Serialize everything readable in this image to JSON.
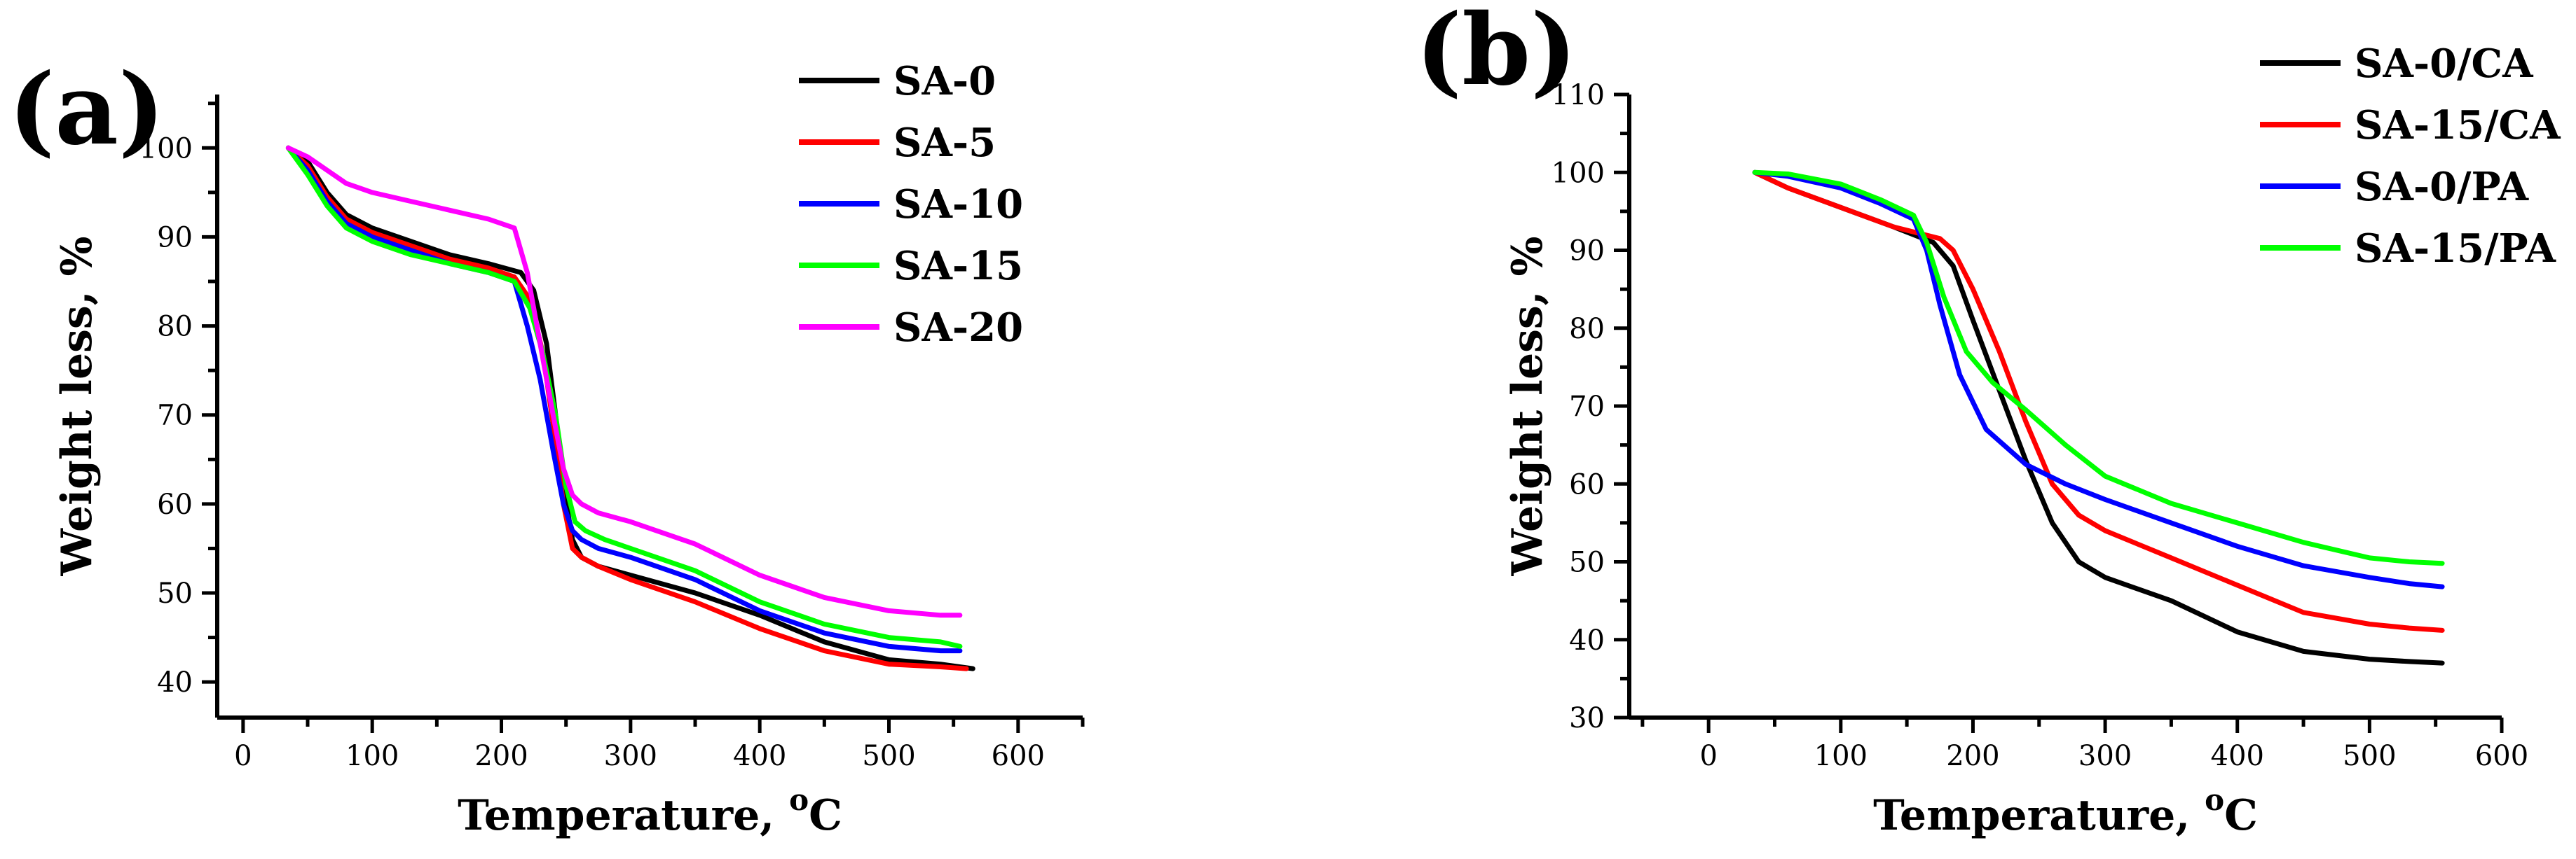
{
  "chart_data": [
    {
      "type": "line",
      "panel_label": "(a)",
      "xlabel": "Temperature, ",
      "xlabel_sup": "o",
      "xlabel_unit": "C",
      "ylabel": "Weight less, %",
      "xlim": [
        -20,
        650
      ],
      "ylim": [
        36,
        106
      ],
      "xticks": [
        0,
        100,
        200,
        300,
        400,
        500,
        600
      ],
      "yticks": [
        40,
        50,
        60,
        70,
        80,
        90,
        100
      ],
      "legend_position": "top-right",
      "series": [
        {
          "name": "SA-0",
          "color": "#000000",
          "x": [
            35,
            50,
            65,
            80,
            100,
            130,
            160,
            190,
            215,
            225,
            235,
            242,
            248,
            255,
            262,
            275,
            300,
            350,
            400,
            450,
            500,
            540,
            565
          ],
          "y": [
            100,
            98.5,
            95,
            92.5,
            91,
            89.5,
            88,
            87,
            86,
            84,
            78,
            70,
            62,
            56,
            54,
            53,
            52,
            50,
            47.5,
            44.5,
            42.5,
            42,
            41.5
          ]
        },
        {
          "name": "SA-5",
          "color": "#ff0000",
          "x": [
            35,
            50,
            65,
            80,
            100,
            130,
            160,
            190,
            210,
            222,
            232,
            240,
            248,
            255,
            262,
            275,
            300,
            350,
            400,
            450,
            500,
            540,
            560
          ],
          "y": [
            100,
            98,
            94.5,
            92,
            90.5,
            89,
            87.5,
            86.5,
            85.5,
            83,
            77,
            69,
            60,
            55,
            54,
            53,
            51.5,
            49,
            46,
            43.5,
            42,
            41.7,
            41.5
          ]
        },
        {
          "name": "SA-10",
          "color": "#0000ff",
          "x": [
            35,
            50,
            65,
            80,
            100,
            130,
            160,
            190,
            210,
            220,
            230,
            240,
            248,
            255,
            262,
            275,
            300,
            350,
            400,
            450,
            500,
            540,
            555
          ],
          "y": [
            100,
            97.5,
            94,
            91.5,
            90,
            88.5,
            87,
            86,
            85,
            80,
            74,
            66,
            60,
            57,
            56,
            55,
            54,
            51.5,
            48,
            45.5,
            44,
            43.5,
            43.5
          ]
        },
        {
          "name": "SA-15",
          "color": "#00ff00",
          "x": [
            35,
            50,
            65,
            80,
            100,
            130,
            160,
            190,
            210,
            222,
            232,
            242,
            250,
            257,
            265,
            280,
            300,
            350,
            400,
            450,
            500,
            540,
            555
          ],
          "y": [
            100,
            97,
            93.5,
            91,
            89.5,
            88,
            87,
            86,
            85,
            82,
            77,
            70,
            62,
            58,
            57,
            56,
            55,
            52.5,
            49,
            46.5,
            45,
            44.5,
            44
          ]
        },
        {
          "name": "SA-20",
          "color": "#ff00ff",
          "x": [
            35,
            50,
            65,
            80,
            100,
            130,
            160,
            190,
            210,
            220,
            230,
            240,
            248,
            255,
            262,
            275,
            300,
            350,
            400,
            450,
            500,
            540,
            555
          ],
          "y": [
            100,
            99,
            97.5,
            96,
            95,
            94,
            93,
            92,
            91,
            86,
            78,
            70,
            64,
            61,
            60,
            59,
            58,
            55.5,
            52,
            49.5,
            48,
            47.5,
            47.5
          ]
        }
      ]
    },
    {
      "type": "line",
      "panel_label": "(b)",
      "xlabel": "Temperature, ",
      "xlabel_sup": "o",
      "xlabel_unit": "C",
      "ylabel": "Weight less, %",
      "xlim": [
        -60,
        600
      ],
      "ylim": [
        30,
        110
      ],
      "xticks": [
        0,
        100,
        200,
        300,
        400,
        500,
        600
      ],
      "yticks": [
        30,
        40,
        50,
        60,
        70,
        80,
        90,
        100,
        110
      ],
      "legend_position": "top-right",
      "series": [
        {
          "name": "SA-0/CA",
          "color": "#000000",
          "x": [
            35,
            60,
            100,
            140,
            170,
            185,
            200,
            220,
            240,
            260,
            280,
            300,
            350,
            400,
            450,
            500,
            530,
            555
          ],
          "y": [
            100,
            98,
            95.5,
            93,
            91,
            88,
            81,
            72,
            63,
            55,
            50,
            48,
            45,
            41,
            38.5,
            37.5,
            37.2,
            37
          ]
        },
        {
          "name": "SA-15/CA",
          "color": "#ff0000",
          "x": [
            35,
            60,
            100,
            140,
            175,
            185,
            200,
            220,
            240,
            260,
            280,
            300,
            350,
            400,
            450,
            500,
            530,
            555
          ],
          "y": [
            100,
            98,
            95.5,
            93,
            91.5,
            90,
            85,
            77,
            68,
            60,
            56,
            54,
            50.5,
            47,
            43.5,
            42,
            41.5,
            41.2
          ]
        },
        {
          "name": "SA-0/PA",
          "color": "#0000ff",
          "x": [
            35,
            60,
            100,
            130,
            155,
            165,
            175,
            190,
            210,
            240,
            270,
            300,
            350,
            400,
            450,
            500,
            530,
            555
          ],
          "y": [
            100,
            99.5,
            98,
            96,
            94,
            90,
            83,
            74,
            67,
            62.5,
            60,
            58,
            55,
            52,
            49.5,
            48,
            47.2,
            46.8
          ]
        },
        {
          "name": "SA-15/PA",
          "color": "#00ff00",
          "x": [
            35,
            60,
            100,
            130,
            155,
            165,
            178,
            195,
            215,
            240,
            270,
            300,
            350,
            400,
            450,
            500,
            530,
            555
          ],
          "y": [
            100,
            99.8,
            98.5,
            96.5,
            94.5,
            91,
            84,
            77,
            73,
            69.5,
            65,
            61,
            57.5,
            55,
            52.5,
            50.5,
            50,
            49.8
          ]
        }
      ]
    }
  ]
}
